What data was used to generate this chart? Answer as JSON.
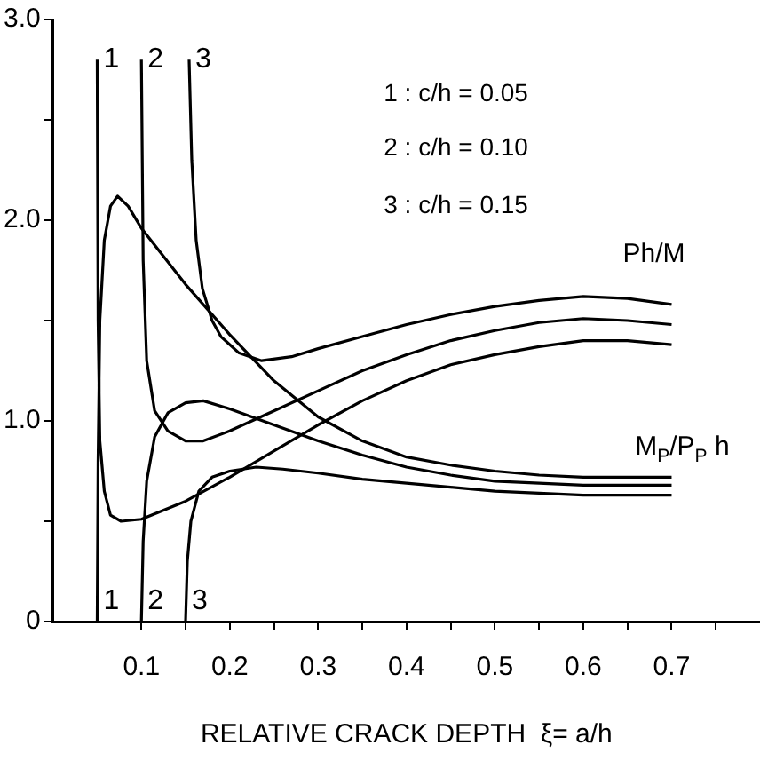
{
  "chart_data": {
    "type": "line",
    "xlabel": "RELATIVE CRACK DEPTH  ξ= a/h",
    "xlim": [
      0,
      0.8
    ],
    "ylim": [
      0,
      3
    ],
    "xticks": [
      0.1,
      {
        "value": 0.15,
        "label": null
      },
      0.2,
      {
        "value": 0.25,
        "label": null
      },
      0.3,
      {
        "value": 0.35,
        "label": null
      },
      0.4,
      {
        "value": 0.45,
        "label": null
      },
      0.5,
      {
        "value": 0.55,
        "label": null
      },
      0.6,
      {
        "value": 0.65,
        "label": null
      },
      0.7,
      {
        "value": 0.75,
        "label": null
      }
    ],
    "yticks": [
      0,
      {
        "value": 0.5,
        "label": null
      },
      {
        "value": 1,
        "label": "1.0"
      },
      {
        "value": 1.5,
        "label": null
      },
      {
        "value": 2,
        "label": "2.0"
      },
      {
        "value": 2.5,
        "label": null
      },
      {
        "value": 3,
        "label": "3.0"
      }
    ],
    "grid": false,
    "legend": false,
    "marker": "none",
    "line_style": "solid",
    "series": [
      {
        "color": "#000000",
        "x": [
          0.05,
          0.051,
          0.053,
          0.058,
          0.065,
          0.077,
          0.1,
          0.15,
          0.2,
          0.25,
          0.3,
          0.35,
          0.4,
          0.45,
          0.5,
          0.55,
          0.6,
          0.65,
          0.7
        ],
        "values": [
          2.8,
          1.5,
          0.9,
          0.65,
          0.53,
          0.5,
          0.51,
          0.6,
          0.72,
          0.85,
          0.98,
          1.1,
          1.2,
          1.28,
          1.33,
          1.37,
          1.4,
          1.4,
          1.38
        ]
      },
      {
        "color": "#000000",
        "x": [
          0.1,
          0.102,
          0.106,
          0.115,
          0.13,
          0.15,
          0.17,
          0.2,
          0.25,
          0.3,
          0.35,
          0.4,
          0.45,
          0.5,
          0.55,
          0.6,
          0.65,
          0.7
        ],
        "values": [
          2.8,
          1.8,
          1.3,
          1.05,
          0.95,
          0.9,
          0.9,
          0.95,
          1.05,
          1.15,
          1.25,
          1.33,
          1.4,
          1.45,
          1.49,
          1.51,
          1.5,
          1.48
        ]
      },
      {
        "color": "#000000",
        "x": [
          0.154,
          0.157,
          0.162,
          0.169,
          0.18,
          0.19,
          0.21,
          0.236,
          0.27,
          0.3,
          0.35,
          0.4,
          0.45,
          0.5,
          0.55,
          0.6,
          0.65,
          0.7
        ],
        "values": [
          2.8,
          2.3,
          1.9,
          1.66,
          1.5,
          1.42,
          1.34,
          1.3,
          1.32,
          1.36,
          1.42,
          1.48,
          1.53,
          1.57,
          1.6,
          1.62,
          1.61,
          1.58
        ]
      },
      {
        "color": "#000000",
        "x": [
          0.05,
          0.051,
          0.053,
          0.058,
          0.065,
          0.073,
          0.085,
          0.1,
          0.15,
          0.2,
          0.25,
          0.3,
          0.35,
          0.4,
          0.45,
          0.5,
          0.55,
          0.6,
          0.65,
          0.7
        ],
        "values": [
          0,
          0.8,
          1.5,
          1.9,
          2.07,
          2.12,
          2.07,
          1.96,
          1.68,
          1.43,
          1.2,
          1.02,
          0.9,
          0.82,
          0.78,
          0.75,
          0.73,
          0.72,
          0.72,
          0.72
        ]
      },
      {
        "color": "#000000",
        "x": [
          0.1,
          0.102,
          0.106,
          0.115,
          0.13,
          0.15,
          0.17,
          0.2,
          0.25,
          0.3,
          0.35,
          0.4,
          0.45,
          0.5,
          0.55,
          0.6,
          0.65,
          0.7
        ],
        "values": [
          0,
          0.4,
          0.7,
          0.92,
          1.04,
          1.09,
          1.1,
          1.06,
          0.98,
          0.9,
          0.83,
          0.77,
          0.73,
          0.7,
          0.69,
          0.68,
          0.68,
          0.68
        ]
      },
      {
        "color": "#000000",
        "x": [
          0.15,
          0.152,
          0.156,
          0.165,
          0.18,
          0.2,
          0.23,
          0.26,
          0.3,
          0.35,
          0.4,
          0.45,
          0.5,
          0.55,
          0.6,
          0.65,
          0.7
        ],
        "values": [
          0,
          0.3,
          0.5,
          0.65,
          0.72,
          0.75,
          0.77,
          0.76,
          0.74,
          0.71,
          0.69,
          0.67,
          0.65,
          0.64,
          0.63,
          0.63,
          0.63
        ]
      }
    ],
    "annotations": [
      "1 : c/h = 0.05",
      "2 : c/h = 0.10",
      "3 : c/h = 0.15",
      "Ph/M",
      "M$_{P}$/P$_{P}$ h",
      {
        "text": "1",
        "x": 0.05,
        "y": 2.8
      },
      {
        "text": "2",
        "x": 0.1,
        "y": 2.8
      },
      {
        "text": "3",
        "x": 0.154,
        "y": 2.8
      },
      {
        "text": "1",
        "x": 0.05,
        "y": 0.1
      },
      {
        "text": "2",
        "x": 0.1,
        "y": 0.1
      },
      {
        "text": "3",
        "x": 0.15,
        "y": 0.1
      }
    ]
  }
}
